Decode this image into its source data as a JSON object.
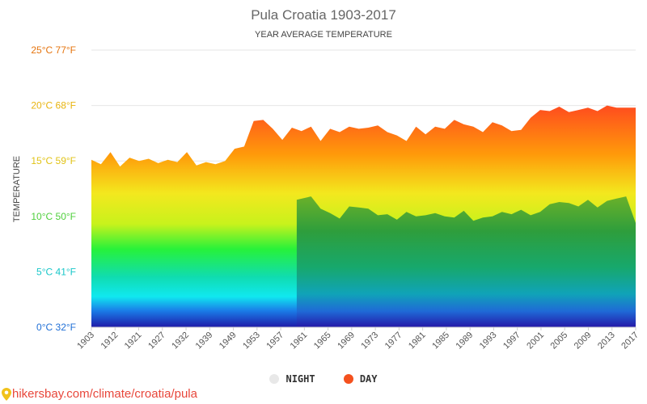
{
  "chart_data": {
    "type": "area",
    "title": "Pula Croatia 1903-2017",
    "subtitle": "YEAR AVERAGE TEMPERATURE",
    "ylabel": "TEMPERATURE",
    "ylim": [
      0,
      25
    ],
    "y_ticks": [
      {
        "value": 0,
        "label": "0°C 32°F",
        "color": "#1f6fd6"
      },
      {
        "value": 5,
        "label": "5°C 41°F",
        "color": "#19c7c9"
      },
      {
        "value": 10,
        "label": "10°C 50°F",
        "color": "#4fcf3c"
      },
      {
        "value": 15,
        "label": "15°C 59°F",
        "color": "#e1c316"
      },
      {
        "value": 20,
        "label": "20°C 68°F",
        "color": "#e8b40e"
      },
      {
        "value": 25,
        "label": "25°C 77°F",
        "color": "#e5740e"
      }
    ],
    "x_tick_labels": [
      "1903",
      "1912",
      "1921",
      "1927",
      "1932",
      "1939",
      "1949",
      "1953",
      "1957",
      "1961",
      "1965",
      "1969",
      "1973",
      "1977",
      "1981",
      "1985",
      "1989",
      "1993",
      "1997",
      "2001",
      "2005",
      "2009",
      "2013",
      "2017"
    ],
    "x_start": 1903,
    "x_end": 2017,
    "series": [
      {
        "name": "DAY",
        "color": "#f4511e",
        "x": [
          1903,
          1905,
          1907,
          1909,
          1911,
          1913,
          1915,
          1917,
          1919,
          1921,
          1923,
          1925,
          1927,
          1929,
          1931,
          1933,
          1935,
          1937,
          1939,
          1941,
          1943,
          1945,
          1947,
          1949,
          1951,
          1953,
          1955,
          1957,
          1959,
          1961,
          1963,
          1965,
          1967,
          1969,
          1971,
          1973,
          1975,
          1977,
          1979,
          1981,
          1983,
          1985,
          1987,
          1989,
          1991,
          1993,
          1995,
          1997,
          1999,
          2001,
          2003,
          2005,
          2007,
          2009,
          2011,
          2013,
          2015,
          2017
        ],
        "values": [
          15.1,
          14.7,
          15.8,
          14.5,
          15.3,
          15.0,
          15.2,
          14.8,
          15.1,
          14.9,
          15.8,
          14.6,
          14.9,
          14.7,
          15.0,
          16.1,
          16.3,
          18.6,
          18.7,
          17.9,
          16.9,
          18.0,
          17.7,
          18.1,
          16.8,
          17.9,
          17.6,
          18.1,
          17.9,
          18.0,
          18.2,
          17.6,
          17.3,
          16.8,
          18.1,
          17.4,
          18.1,
          17.9,
          18.7,
          18.3,
          18.1,
          17.6,
          18.5,
          18.2,
          17.7,
          17.8,
          18.9,
          19.6,
          19.5,
          19.9,
          19.4,
          19.6,
          19.8,
          19.5,
          20.0,
          19.8,
          19.8,
          19.8
        ]
      },
      {
        "name": "NIGHT",
        "color": "#e8e8e8",
        "x": [
          1946,
          1949,
          1951,
          1953,
          1955,
          1957,
          1959,
          1961,
          1963,
          1965,
          1967,
          1969,
          1971,
          1973,
          1975,
          1977,
          1979,
          1981,
          1983,
          1985,
          1987,
          1989,
          1991,
          1993,
          1995,
          1997,
          1999,
          2001,
          2003,
          2005,
          2007,
          2009,
          2011,
          2013,
          2015,
          2017
        ],
        "values": [
          11.5,
          11.8,
          10.7,
          10.3,
          9.8,
          10.9,
          10.8,
          10.7,
          10.1,
          10.2,
          9.7,
          10.4,
          10.0,
          10.1,
          10.3,
          10.0,
          9.9,
          10.5,
          9.6,
          9.9,
          10.0,
          10.4,
          10.2,
          10.6,
          10.1,
          10.4,
          11.1,
          11.3,
          11.2,
          10.9,
          11.5,
          10.8,
          11.4,
          11.6,
          11.8,
          9.4
        ]
      }
    ],
    "legend": {
      "position": "bottom-center",
      "entries": [
        "NIGHT",
        "DAY"
      ]
    },
    "grid": true
  },
  "footer": {
    "text": "hikersbay.com/climate/croatia/pula"
  }
}
